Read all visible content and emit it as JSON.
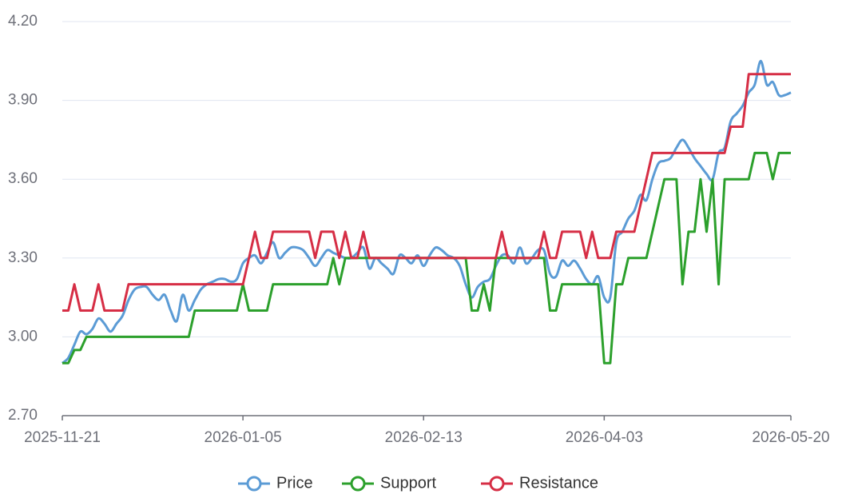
{
  "chart_data": {
    "type": "line",
    "categories": [
      "2025-11-21",
      null,
      null,
      null,
      null,
      null,
      null,
      null,
      null,
      null,
      null,
      null,
      null,
      null,
      null,
      null,
      null,
      null,
      null,
      null,
      null,
      null,
      null,
      null,
      null,
      null,
      null,
      null,
      null,
      null,
      "2026-01-05",
      null,
      null,
      null,
      null,
      null,
      null,
      null,
      null,
      null,
      null,
      null,
      null,
      null,
      null,
      null,
      null,
      null,
      null,
      null,
      null,
      null,
      null,
      null,
      null,
      null,
      null,
      null,
      null,
      null,
      "2026-02-13",
      null,
      null,
      null,
      null,
      null,
      null,
      null,
      null,
      null,
      null,
      null,
      null,
      null,
      null,
      null,
      null,
      null,
      null,
      null,
      null,
      null,
      null,
      null,
      null,
      null,
      null,
      null,
      null,
      null,
      "2026-04-03",
      null,
      null,
      null,
      null,
      null,
      null,
      null,
      null,
      null,
      null,
      null,
      null,
      null,
      null,
      null,
      null,
      null,
      null,
      null,
      null,
      null,
      null,
      null,
      null,
      null,
      null,
      null,
      null,
      null,
      null,
      "2026-05-20"
    ],
    "series": [
      {
        "name": "Price",
        "color": "#5b9bd5",
        "smooth": true,
        "values": [
          2.9,
          2.92,
          2.97,
          3.02,
          3.01,
          3.03,
          3.07,
          3.05,
          3.02,
          3.05,
          3.08,
          3.14,
          3.18,
          3.19,
          3.19,
          3.16,
          3.14,
          3.16,
          3.1,
          3.06,
          3.16,
          3.1,
          3.14,
          3.18,
          3.2,
          3.21,
          3.22,
          3.22,
          3.21,
          3.22,
          3.28,
          3.3,
          3.31,
          3.28,
          3.32,
          3.36,
          3.3,
          3.32,
          3.34,
          3.34,
          3.33,
          3.3,
          3.27,
          3.3,
          3.33,
          3.32,
          3.31,
          3.3,
          3.3,
          3.32,
          3.34,
          3.26,
          3.3,
          3.28,
          3.26,
          3.24,
          3.31,
          3.3,
          3.28,
          3.31,
          3.27,
          3.31,
          3.34,
          3.33,
          3.31,
          3.3,
          3.27,
          3.2,
          3.15,
          3.19,
          3.21,
          3.22,
          3.27,
          3.31,
          3.31,
          3.28,
          3.34,
          3.28,
          3.3,
          3.33,
          3.33,
          3.24,
          3.23,
          3.29,
          3.27,
          3.29,
          3.26,
          3.22,
          3.2,
          3.23,
          3.15,
          3.15,
          3.36,
          3.4,
          3.45,
          3.48,
          3.54,
          3.52,
          3.6,
          3.66,
          3.67,
          3.68,
          3.72,
          3.75,
          3.72,
          3.68,
          3.65,
          3.62,
          3.6,
          3.7,
          3.72,
          3.82,
          3.85,
          3.88,
          3.93,
          3.96,
          4.05,
          3.96,
          3.97,
          3.92,
          3.92,
          3.93
        ]
      },
      {
        "name": "Support",
        "color": "#2ca02c",
        "smooth": false,
        "values": [
          2.9,
          2.9,
          2.95,
          2.95,
          3,
          3,
          3,
          3,
          3,
          3,
          3,
          3,
          3,
          3,
          3,
          3,
          3,
          3,
          3,
          3,
          3,
          3,
          3.1,
          3.1,
          3.1,
          3.1,
          3.1,
          3.1,
          3.1,
          3.1,
          3.2,
          3.1,
          3.1,
          3.1,
          3.1,
          3.2,
          3.2,
          3.2,
          3.2,
          3.2,
          3.2,
          3.2,
          3.2,
          3.2,
          3.2,
          3.3,
          3.2,
          3.3,
          3.3,
          3.3,
          3.3,
          3.3,
          3.3,
          3.3,
          3.3,
          3.3,
          3.3,
          3.3,
          3.3,
          3.3,
          3.3,
          3.3,
          3.3,
          3.3,
          3.3,
          3.3,
          3.3,
          3.3,
          3.1,
          3.1,
          3.2,
          3.1,
          3.3,
          3.3,
          3.3,
          3.3,
          3.3,
          3.3,
          3.3,
          3.3,
          3.3,
          3.1,
          3.1,
          3.2,
          3.2,
          3.2,
          3.2,
          3.2,
          3.2,
          3.2,
          2.9,
          2.9,
          3.2,
          3.2,
          3.3,
          3.3,
          3.3,
          3.3,
          3.4,
          3.5,
          3.6,
          3.6,
          3.6,
          3.2,
          3.4,
          3.4,
          3.6,
          3.4,
          3.6,
          3.2,
          3.6,
          3.6,
          3.6,
          3.6,
          3.6,
          3.7,
          3.7,
          3.7,
          3.6,
          3.7,
          3.7,
          3.7
        ]
      },
      {
        "name": "Resistance",
        "color": "#d62e45",
        "smooth": false,
        "values": [
          3.1,
          3.1,
          3.2,
          3.1,
          3.1,
          3.1,
          3.2,
          3.1,
          3.1,
          3.1,
          3.1,
          3.2,
          3.2,
          3.2,
          3.2,
          3.2,
          3.2,
          3.2,
          3.2,
          3.2,
          3.2,
          3.2,
          3.2,
          3.2,
          3.2,
          3.2,
          3.2,
          3.2,
          3.2,
          3.2,
          3.2,
          3.3,
          3.4,
          3.3,
          3.3,
          3.4,
          3.4,
          3.4,
          3.4,
          3.4,
          3.4,
          3.4,
          3.3,
          3.4,
          3.4,
          3.4,
          3.3,
          3.4,
          3.3,
          3.3,
          3.4,
          3.3,
          3.3,
          3.3,
          3.3,
          3.3,
          3.3,
          3.3,
          3.3,
          3.3,
          3.3,
          3.3,
          3.3,
          3.3,
          3.3,
          3.3,
          3.3,
          3.3,
          3.3,
          3.3,
          3.3,
          3.3,
          3.3,
          3.4,
          3.3,
          3.3,
          3.3,
          3.3,
          3.3,
          3.3,
          3.4,
          3.3,
          3.3,
          3.4,
          3.4,
          3.4,
          3.4,
          3.3,
          3.4,
          3.3,
          3.3,
          3.3,
          3.4,
          3.4,
          3.4,
          3.4,
          3.5,
          3.6,
          3.7,
          3.7,
          3.7,
          3.7,
          3.7,
          3.7,
          3.7,
          3.7,
          3.7,
          3.7,
          3.7,
          3.7,
          3.7,
          3.8,
          3.8,
          3.8,
          4,
          4,
          4,
          4,
          4,
          4,
          4,
          4
        ]
      }
    ],
    "ylim": [
      2.7,
      4.2
    ],
    "yticks": [
      {
        "value": 2.7,
        "label": "2.70"
      },
      {
        "value": 3.0,
        "label": "3.00"
      },
      {
        "value": 3.3,
        "label": "3.30"
      },
      {
        "value": 3.6,
        "label": "3.60"
      },
      {
        "value": 3.9,
        "label": "3.90"
      },
      {
        "value": 4.2,
        "label": "4.20"
      }
    ],
    "grid": true,
    "legend": "bottom"
  }
}
